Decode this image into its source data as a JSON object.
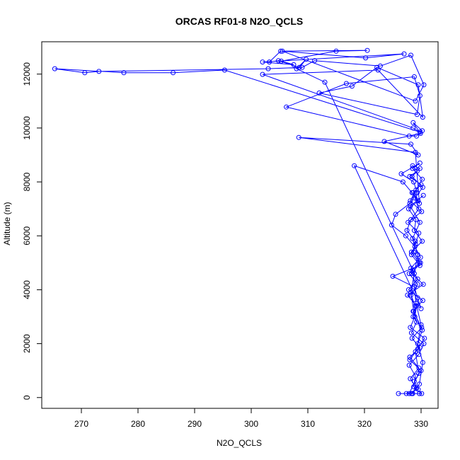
{
  "chart_data": {
    "type": "line",
    "title": "ORCAS RF01-8 N2O_QCLS",
    "xlabel": "N2O_QCLS",
    "ylabel": "Altitude (m)",
    "xlim": [
      263,
      333
    ],
    "ylim": [
      -400,
      13200
    ],
    "xticks": [
      270,
      280,
      290,
      300,
      310,
      320,
      330
    ],
    "yticks": [
      0,
      2000,
      4000,
      6000,
      8000,
      10000,
      12000
    ],
    "grid": false,
    "color": "#0000ff",
    "marker": "open-circle",
    "series": [
      {
        "x": [
          328.5,
          329.2,
          328.1,
          329.6,
          328.0,
          329.8,
          328.4,
          330.1,
          328.6,
          329.0,
          328.2,
          329.4,
          327.9,
          329.7,
          328.3,
          330.2,
          328.8,
          329.1,
          327.8,
          329.5,
          328.6,
          330.0,
          328.0,
          329.3,
          328.5,
          329.8,
          328.4,
          330.3,
          328.9,
          329.6,
          328.2,
          327.5,
          329.0,
          328.7,
          329.9,
          328.3,
          330.4,
          327.6,
          329.2,
          328.9,
          328.1,
          330.6,
          329.4,
          328.0,
          330.0,
          328.8,
          329.5,
          327.4,
          326.0,
          328.5,
          329.7,
          330.1,
          328.7,
          329.0,
          327.9,
          329.6,
          330.5,
          328.3,
          329.2,
          328.6,
          330.3,
          327.8,
          329.4,
          328.2,
          329.9,
          328.9,
          327.3,
          324.8,
          325.5,
          328.0,
          329.3,
          328.7,
          326.5,
          329.8,
          328.5,
          330.2,
          329.1,
          328.1,
          330.1,
          327.7,
          329.6,
          329.0,
          328.3,
          329.8,
          325.0,
          328.8,
          329.4,
          330.0,
          318.2,
          326.8,
          328.4,
          329.7,
          329.0,
          308.4,
          328.2,
          329.5,
          323.5,
          329.9,
          328.6,
          330.2,
          329.2,
          327.9,
          306.2,
          316.8,
          328.8,
          329.8,
          329.3,
          312.0,
          317.8,
          322.2,
          329.5,
          330.3,
          322.4,
          302.0,
          328.6,
          329.8,
          295.3,
          286.2,
          277.5,
          265.3,
          270.6,
          273.1,
          303.0,
          309.0,
          311.2,
          322.8,
          328.2,
          330.5,
          329.0,
          305.5,
          320.2,
          327.0,
          302.0,
          307.5,
          305.3,
          315.0,
          320.5,
          305.2,
          303.2,
          304.8,
          308.5,
          309.7,
          308.0,
          313.0,
          328.6,
          329.1,
          330.0,
          329.4,
          330.3,
          329.7,
          328.3,
          327.9,
          329.6,
          329.0,
          330.2,
          328.7,
          328.2,
          328.8,
          329.4,
          328.5,
          329.8,
          328.1,
          330.4
        ],
        "y": [
          150,
          350,
          700,
          1100,
          1500,
          1850,
          2200,
          2600,
          3000,
          3400,
          3800,
          4200,
          4600,
          5000,
          5400,
          5800,
          6200,
          6600,
          7000,
          7300,
          7600,
          7900,
          8200,
          8400,
          8600,
          8500,
          8200,
          7800,
          7400,
          7000,
          6600,
          6200,
          5800,
          5400,
          5000,
          4600,
          4200,
          3800,
          3400,
          3000,
          2600,
          2200,
          1800,
          1400,
          1000,
          600,
          300,
          150,
          150,
          150,
          150,
          150,
          400,
          800,
          1200,
          1600,
          2000,
          2400,
          2800,
          3200,
          3600,
          4000,
          4400,
          4800,
          5200,
          5600,
          6000,
          6400,
          6800,
          7200,
          7600,
          8000,
          8300,
          8700,
          8500,
          8100,
          7700,
          7300,
          6900,
          6500,
          6100,
          5700,
          5300,
          4900,
          4500,
          4100,
          3700,
          3300,
          8600,
          8000,
          7600,
          7200,
          9100,
          9650,
          9400,
          9000,
          9500,
          9800,
          10200,
          9900,
          9700,
          9700,
          10780,
          11650,
          11900,
          11200,
          10500,
          11300,
          11550,
          12250,
          11600,
          10400,
          12150,
          11990,
          10000,
          9850,
          12150,
          12050,
          12050,
          12200,
          12050,
          12100,
          12200,
          12250,
          12500,
          12300,
          12700,
          11600,
          11000,
          12850,
          12600,
          12750,
          12450,
          12350,
          12480,
          12850,
          12880,
          12850,
          12450,
          12500,
          12250,
          12550,
          12200,
          11700,
          4700,
          3500,
          2700,
          2000,
          1300,
          500,
          150,
          150,
          900,
          1700,
          2500,
          3200,
          3900,
          4600,
          5300,
          5900,
          6500,
          7100,
          7500
        ]
      }
    ]
  }
}
